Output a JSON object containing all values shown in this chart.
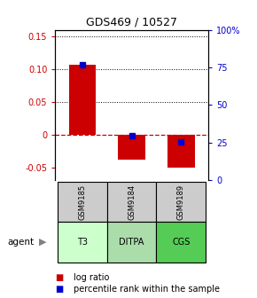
{
  "title": "GDS469 / 10527",
  "samples": [
    "GSM9185",
    "GSM9184",
    "GSM9189"
  ],
  "agents": [
    "T3",
    "DITPA",
    "CGS"
  ],
  "log_ratios": [
    0.107,
    -0.038,
    -0.05
  ],
  "percentile_ranks": [
    82,
    32,
    27
  ],
  "bar_color": "#cc0000",
  "dot_color": "#0000cc",
  "ylim_left": [
    -0.07,
    0.16
  ],
  "ylim_right": [
    0,
    107
  ],
  "yticks_left": [
    -0.05,
    0.0,
    0.05,
    0.1,
    0.15
  ],
  "yticks_right": [
    0,
    26.75,
    53.5,
    80.25,
    107
  ],
  "ytick_labels_left": [
    "-0.05",
    "0",
    "0.05",
    "0.10",
    "0.15"
  ],
  "ytick_labels_right": [
    "0",
    "25",
    "50",
    "75",
    "100%"
  ],
  "zero_line_color": "#cc0000",
  "agent_colors": [
    "#ccffcc",
    "#aaddaa",
    "#55cc55"
  ],
  "sample_box_color": "#cccccc",
  "title_fontsize": 9,
  "tick_fontsize": 7,
  "legend_fontsize": 7
}
